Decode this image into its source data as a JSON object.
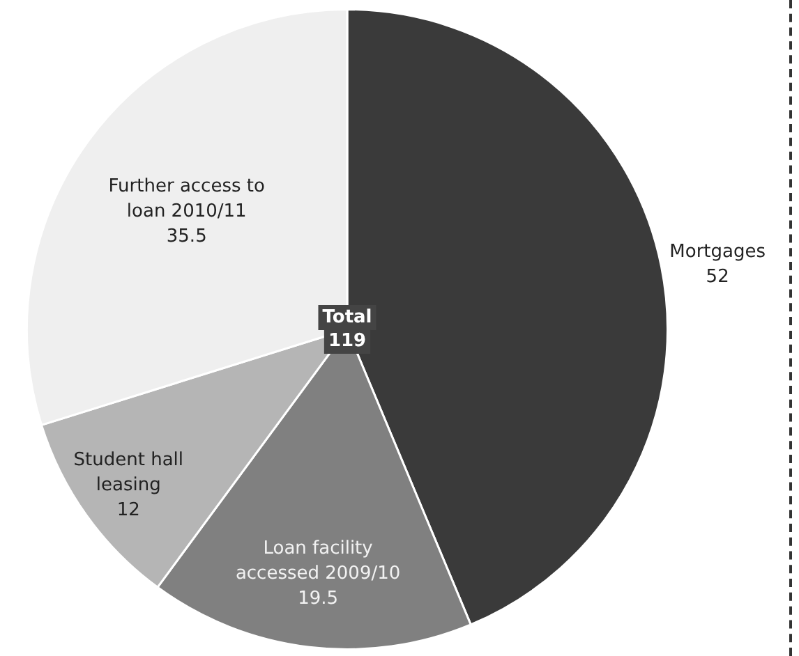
{
  "chart_data": {
    "type": "pie",
    "categories": [
      "Mortgages",
      "Loan facility accessed 2009/10",
      "Student hall leasing",
      "Further access to loan 2010/11"
    ],
    "values": [
      52,
      19.5,
      12,
      35.5
    ],
    "colors": [
      "#3a3a3a",
      "#808080",
      "#b5b5b5",
      "#efefef"
    ],
    "data_labels": true,
    "legend": false,
    "annotations": [
      "Total",
      "119"
    ]
  }
}
